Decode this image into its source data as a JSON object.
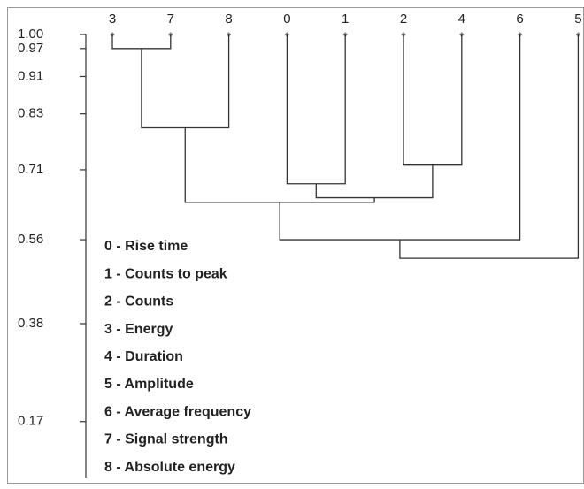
{
  "chart_data": {
    "type": "dendrogram",
    "leaves": [
      "3",
      "7",
      "8",
      "0",
      "1",
      "2",
      "4",
      "6",
      "5"
    ],
    "merges": [
      {
        "children": [
          0,
          1
        ],
        "height": 0.97
      },
      {
        "children": [
          9,
          2
        ],
        "height": 0.8
      },
      {
        "children": [
          3,
          4
        ],
        "height": 0.68
      },
      {
        "children": [
          5,
          6
        ],
        "height": 0.72
      },
      {
        "children": [
          11,
          12
        ],
        "height": 0.65
      },
      {
        "children": [
          10,
          13
        ],
        "height": 0.64
      },
      {
        "children": [
          14,
          7
        ],
        "height": 0.56
      },
      {
        "children": [
          15,
          8
        ],
        "height": 0.52
      }
    ],
    "ylim": [
      0.05,
      1.0
    ],
    "yticks": [
      {
        "value": 1.0,
        "label": "1.00"
      },
      0.97,
      0.91,
      0.83,
      0.71,
      0.56,
      0.38,
      0.17
    ],
    "legend": [
      "0 - Rise time",
      "1 - Counts to peak",
      "2 - Counts",
      "3 - Energy",
      "4 - Duration",
      "5 - Amplitude",
      "6 - Average frequency",
      "7 - Signal strength",
      "8 - Absolute energy"
    ],
    "color": "#333333"
  }
}
